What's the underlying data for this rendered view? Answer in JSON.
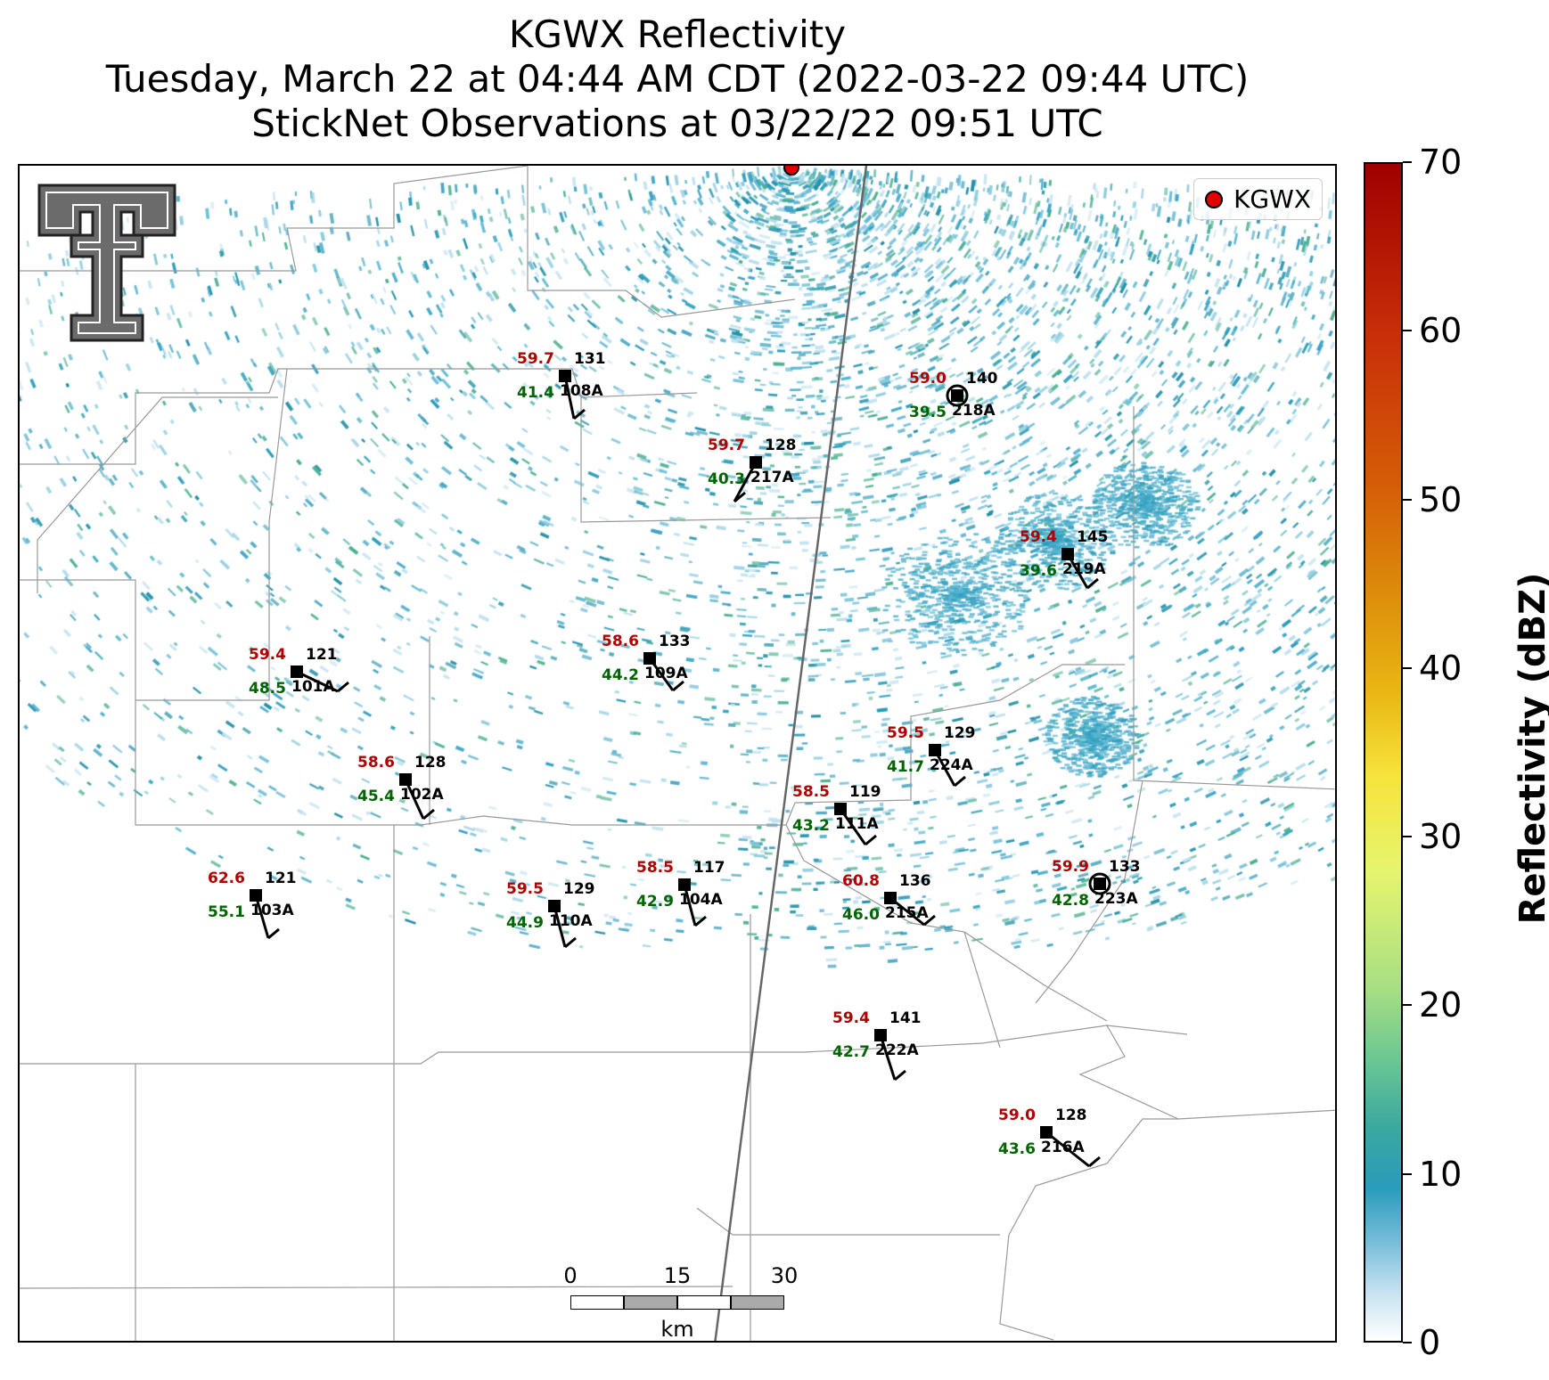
{
  "title": {
    "line1": "KGWX Reflectivity",
    "line2": "Tuesday, March 22 at 04:44 AM CDT (2022-03-22 09:44 UTC)",
    "line3": "StickNet Observations at 03/22/22 09:51 UTC"
  },
  "legend": {
    "label": "KGWX"
  },
  "colorbar": {
    "label": "Reflectivity (dBZ)",
    "ticks": [
      "0",
      "10",
      "20",
      "30",
      "40",
      "50",
      "60",
      "70"
    ],
    "min": 0,
    "max": 70,
    "colors": {
      "low": "#ffffff",
      "mid": "#2a9bbb",
      "high": "#a00000"
    }
  },
  "scalebar": {
    "labels": [
      "0",
      "15",
      "30"
    ],
    "unit": "km"
  },
  "stations": [
    {
      "id": "108A",
      "temp": "59.7",
      "dew": "41.4",
      "dir": "131"
    },
    {
      "id": "217A",
      "temp": "59.7",
      "dew": "40.3",
      "dir": "128"
    },
    {
      "id": "218A",
      "temp": "59.0",
      "dew": "39.5",
      "dir": "140"
    },
    {
      "id": "219A",
      "temp": "59.4",
      "dew": "39.6",
      "dir": "145"
    },
    {
      "id": "101A",
      "temp": "59.4",
      "dew": "48.5",
      "dir": "121"
    },
    {
      "id": "109A",
      "temp": "58.6",
      "dew": "44.2",
      "dir": "133"
    },
    {
      "id": "224A",
      "temp": "59.5",
      "dew": "41.7",
      "dir": "129"
    },
    {
      "id": "102A",
      "temp": "58.6",
      "dew": "45.4",
      "dir": "128"
    },
    {
      "id": "111A",
      "temp": "58.5",
      "dew": "43.2",
      "dir": "119"
    },
    {
      "id": "103A",
      "temp": "62.6",
      "dew": "55.1",
      "dir": "121"
    },
    {
      "id": "110A",
      "temp": "59.5",
      "dew": "44.9",
      "dir": "129"
    },
    {
      "id": "104A",
      "temp": "58.5",
      "dew": "42.9",
      "dir": "117"
    },
    {
      "id": "215A",
      "temp": "60.8",
      "dew": "46.0",
      "dir": "136"
    },
    {
      "id": "223A",
      "temp": "59.9",
      "dew": "42.8",
      "dir": "133"
    },
    {
      "id": "222A",
      "temp": "59.4",
      "dew": "42.7",
      "dir": "141"
    },
    {
      "id": "216A",
      "temp": "59.0",
      "dew": "43.6",
      "dir": "128"
    }
  ],
  "colors": {
    "temp": "#b00000",
    "dew": "#006400",
    "radar_site": "#e00000"
  }
}
